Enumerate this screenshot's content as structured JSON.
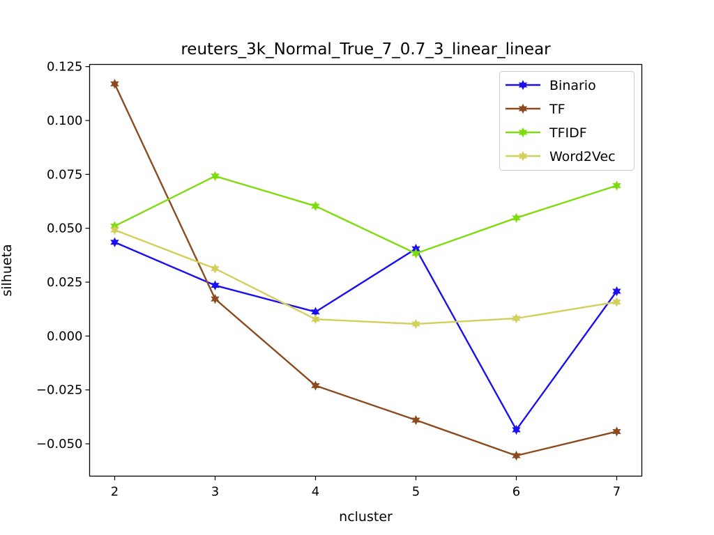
{
  "chart_data": {
    "type": "line",
    "title": "reuters_3k_Normal_True_7_0.7_3_linear_linear",
    "xlabel": "ncluster",
    "ylabel": "silhueta",
    "x": [
      2,
      3,
      4,
      5,
      6,
      7
    ],
    "xticks": [
      "2",
      "3",
      "4",
      "5",
      "6",
      "7"
    ],
    "xlim": [
      1.75,
      7.25
    ],
    "ylim": [
      -0.065,
      0.126
    ],
    "yticks": [
      -0.05,
      -0.025,
      0.0,
      0.025,
      0.05,
      0.075,
      0.1,
      0.125
    ],
    "ytick_labels": [
      "−0.050",
      "−0.025",
      "0.000",
      "0.025",
      "0.050",
      "0.075",
      "0.100",
      "0.125"
    ],
    "grid": false,
    "legend_position": "top-right",
    "series": [
      {
        "name": "Binario",
        "color": "#1a0ff0",
        "values": [
          0.0435,
          0.0235,
          0.0112,
          0.0405,
          -0.0435,
          0.0208
        ]
      },
      {
        "name": "TF",
        "color": "#8b4b1f",
        "values": [
          0.117,
          0.0172,
          -0.023,
          -0.039,
          -0.0555,
          -0.0443
        ]
      },
      {
        "name": "TFIDF",
        "color": "#7ddc0c",
        "values": [
          0.051,
          0.0742,
          0.0603,
          0.0383,
          0.0548,
          0.0698
        ]
      },
      {
        "name": "Word2Vec",
        "color": "#d4cf5c",
        "values": [
          0.0492,
          0.0313,
          0.0078,
          0.0056,
          0.0082,
          0.0158
        ]
      }
    ]
  }
}
